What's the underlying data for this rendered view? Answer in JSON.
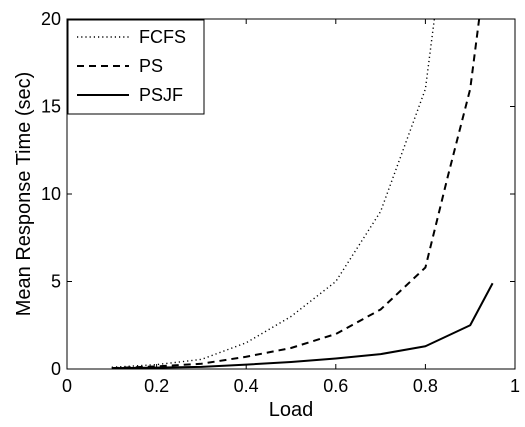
{
  "chart_data": {
    "type": "line",
    "xlabel": "Load",
    "ylabel": "Mean Response Time (sec)",
    "xlim": [
      0,
      1
    ],
    "ylim": [
      0,
      20
    ],
    "xticks": [
      0,
      0.2,
      0.4,
      0.6,
      0.8,
      1
    ],
    "yticks": [
      0,
      5,
      10,
      15,
      20
    ],
    "xtick_labels": [
      "0",
      "0.2",
      "0.4",
      "0.6",
      "0.8",
      "1"
    ],
    "ytick_labels": [
      "0",
      "5",
      "10",
      "15",
      "20"
    ],
    "grid": false,
    "legend_position": "top-left",
    "series": [
      {
        "name": "FCFS",
        "style": "dotted",
        "color": "#000000",
        "x": [
          0.1,
          0.2,
          0.3,
          0.4,
          0.5,
          0.6,
          0.7,
          0.75,
          0.8,
          0.82
        ],
        "y": [
          0.1,
          0.25,
          0.55,
          1.5,
          3.0,
          5.0,
          9.0,
          12.5,
          16.0,
          20.0
        ]
      },
      {
        "name": "PS",
        "style": "dashed",
        "color": "#000000",
        "x": [
          0.1,
          0.2,
          0.3,
          0.4,
          0.5,
          0.6,
          0.7,
          0.8,
          0.85,
          0.9,
          0.92
        ],
        "y": [
          0.05,
          0.15,
          0.3,
          0.7,
          1.2,
          2.0,
          3.4,
          5.8,
          11.0,
          16.0,
          20.0
        ]
      },
      {
        "name": "PSJF",
        "style": "solid",
        "color": "#000000",
        "x": [
          0.1,
          0.2,
          0.3,
          0.4,
          0.5,
          0.6,
          0.7,
          0.8,
          0.9,
          0.95
        ],
        "y": [
          0.05,
          0.08,
          0.12,
          0.25,
          0.4,
          0.6,
          0.85,
          1.3,
          2.5,
          4.9
        ]
      }
    ]
  }
}
